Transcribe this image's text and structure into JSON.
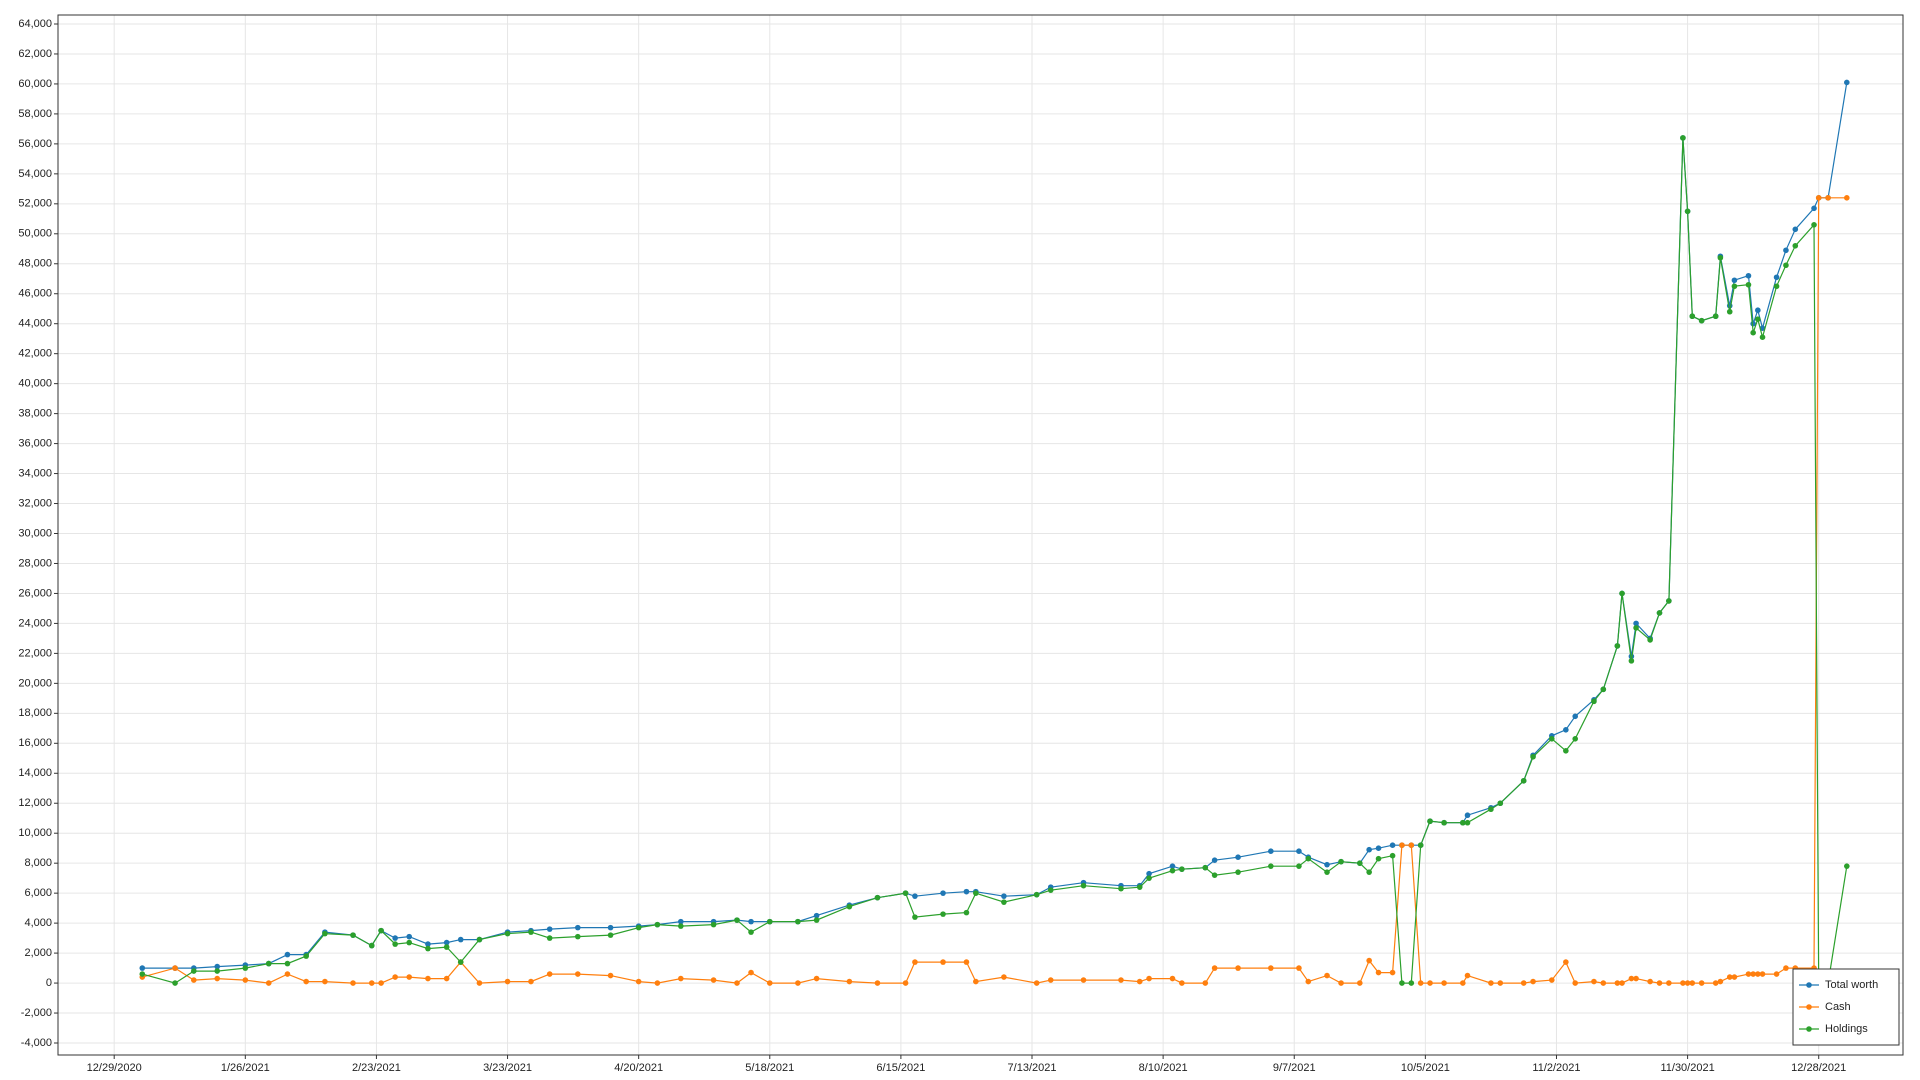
{
  "chart_data": {
    "type": "line",
    "x": [
      "1/4/2021",
      "1/11/2021",
      "1/15/2021",
      "1/20/2021",
      "1/26/2021",
      "1/31/2021",
      "2/4/2021",
      "2/8/2021",
      "2/12/2021",
      "2/18/2021",
      "2/22/2021",
      "2/24/2021",
      "2/27/2021",
      "3/2/2021",
      "3/6/2021",
      "3/10/2021",
      "3/13/2021",
      "3/17/2021",
      "3/23/2021",
      "3/28/2021",
      "4/1/2021",
      "4/7/2021",
      "4/14/2021",
      "4/20/2021",
      "4/24/2021",
      "4/29/2021",
      "5/6/2021",
      "5/11/2021",
      "5/14/2021",
      "5/18/2021",
      "5/24/2021",
      "5/28/2021",
      "6/4/2021",
      "6/10/2021",
      "6/16/2021",
      "6/18/2021",
      "6/24/2021",
      "6/29/2021",
      "7/1/2021",
      "7/7/2021",
      "7/14/2021",
      "7/17/2021",
      "7/24/2021",
      "8/1/2021",
      "8/5/2021",
      "8/7/2021",
      "8/12/2021",
      "8/14/2021",
      "8/19/2021",
      "8/21/2021",
      "8/26/2021",
      "9/2/2021",
      "9/8/2021",
      "9/10/2021",
      "9/14/2021",
      "9/17/2021",
      "9/21/2021",
      "9/23/2021",
      "9/25/2021",
      "9/28/2021",
      "9/30/2021",
      "10/2/2021",
      "10/4/2021",
      "10/6/2021",
      "10/9/2021",
      "10/13/2021",
      "10/14/2021",
      "10/19/2021",
      "10/21/2021",
      "10/26/2021",
      "10/28/2021",
      "11/1/2021",
      "11/4/2021",
      "11/6/2021",
      "11/10/2021",
      "11/12/2021",
      "11/15/2021",
      "11/16/2021",
      "11/18/2021",
      "11/19/2021",
      "11/22/2021",
      "11/24/2021",
      "11/26/2021",
      "11/29/2021",
      "11/30/2021",
      "12/1/2021",
      "12/3/2021",
      "12/6/2021",
      "12/7/2021",
      "12/9/2021",
      "12/10/2021",
      "12/13/2021",
      "12/14/2021",
      "12/15/2021",
      "12/16/2021",
      "12/19/2021",
      "12/21/2021",
      "12/23/2021",
      "12/27/2021",
      "12/28/2021",
      "12/30/2021",
      "1/3/2022"
    ],
    "series": [
      {
        "name": "Total worth",
        "color": "#1f77b4",
        "values": [
          1000,
          1000,
          1000,
          1100,
          1200,
          1300,
          1900,
          1900,
          3400,
          3200,
          2500,
          3500,
          3000,
          3100,
          2600,
          2700,
          2900,
          2900,
          3400,
          3500,
          3600,
          3700,
          3700,
          3800,
          3900,
          4100,
          4100,
          4200,
          4100,
          4100,
          4100,
          4500,
          5200,
          5700,
          6000,
          5800,
          6000,
          6100,
          6100,
          5800,
          5900,
          6400,
          6700,
          6500,
          6500,
          7300,
          7800,
          7600,
          7700,
          8200,
          8400,
          8800,
          8800,
          8400,
          7900,
          8100,
          8000,
          8900,
          9000,
          9200,
          9200,
          9200,
          9200,
          10800,
          10700,
          10700,
          11200,
          11700,
          12000,
          13500,
          15200,
          16500,
          16900,
          17800,
          18900,
          19600,
          22500,
          26000,
          21800,
          24000,
          23000,
          24700,
          25500,
          56400,
          51500,
          44500,
          44200,
          44500,
          48500,
          45200,
          46900,
          47200,
          44000,
          44900,
          43700,
          47100,
          48900,
          50300,
          51700,
          52400,
          52400,
          60100
        ]
      },
      {
        "name": "Cash",
        "color": "#ff7f0e",
        "values": [
          400,
          1000,
          200,
          300,
          200,
          0,
          600,
          100,
          100,
          0,
          0,
          0,
          400,
          400,
          300,
          300,
          1400,
          0,
          100,
          100,
          600,
          600,
          500,
          100,
          0,
          300,
          200,
          0,
          700,
          0,
          0,
          300,
          100,
          0,
          0,
          1400,
          1400,
          1400,
          100,
          400,
          0,
          200,
          200,
          200,
          100,
          300,
          300,
          0,
          0,
          1000,
          1000,
          1000,
          1000,
          100,
          500,
          0,
          0,
          1500,
          700,
          700,
          9200,
          9200,
          0,
          0,
          0,
          0,
          500,
          0,
          0,
          0,
          100,
          200,
          1400,
          0,
          100,
          0,
          0,
          0,
          300,
          300,
          100,
          0,
          0,
          0,
          0,
          0,
          0,
          0,
          100,
          400,
          400,
          600,
          600,
          600,
          600,
          600,
          1000,
          1000,
          1000,
          52400,
          52400,
          52400
        ]
      },
      {
        "name": "Holdings",
        "color": "#2ca02c",
        "values": [
          600,
          0,
          800,
          800,
          1000,
          1300,
          1300,
          1800,
          3300,
          3200,
          2500,
          3500,
          2600,
          2700,
          2300,
          2400,
          1400,
          2900,
          3300,
          3400,
          3000,
          3100,
          3200,
          3700,
          3900,
          3800,
          3900,
          4200,
          3400,
          4100,
          4100,
          4200,
          5100,
          5700,
          6000,
          4400,
          4600,
          4700,
          6000,
          5400,
          5900,
          6200,
          6500,
          6300,
          6400,
          7000,
          7500,
          7600,
          7700,
          7200,
          7400,
          7800,
          7800,
          8300,
          7400,
          8100,
          8000,
          7400,
          8300,
          8500,
          0,
          0,
          9200,
          10800,
          10700,
          10700,
          10700,
          11600,
          12000,
          13500,
          15100,
          16300,
          15500,
          16300,
          18800,
          19600,
          22500,
          26000,
          21500,
          23700,
          22900,
          24700,
          25500,
          56400,
          51500,
          44500,
          44200,
          44500,
          48400,
          44800,
          46500,
          46600,
          43400,
          44300,
          43100,
          46500,
          47900,
          49200,
          50600,
          0,
          0,
          7800
        ]
      }
    ],
    "xlim": [
      "12/17/2020",
      "1/15/2022"
    ],
    "xticks": [
      "12/29/2020",
      "1/26/2021",
      "2/23/2021",
      "3/23/2021",
      "4/20/2021",
      "5/18/2021",
      "6/15/2021",
      "7/13/2021",
      "8/10/2021",
      "9/7/2021",
      "10/5/2021",
      "11/2/2021",
      "11/30/2021",
      "12/28/2021"
    ],
    "ylim": [
      -4800,
      64600
    ],
    "yticks": [
      {
        "value": -4000,
        "label": "-4,000"
      },
      {
        "value": -2000,
        "label": "-2,000"
      },
      0,
      {
        "value": 2000,
        "label": "2,000"
      },
      {
        "value": 4000,
        "label": "4,000"
      },
      {
        "value": 6000,
        "label": "6,000"
      },
      {
        "value": 8000,
        "label": "8,000"
      },
      {
        "value": 10000,
        "label": "10,000"
      },
      {
        "value": 12000,
        "label": "12,000"
      },
      {
        "value": 14000,
        "label": "14,000"
      },
      {
        "value": 16000,
        "label": "16,000"
      },
      {
        "value": 18000,
        "label": "18,000"
      },
      {
        "value": 20000,
        "label": "20,000"
      },
      {
        "value": 22000,
        "label": "22,000"
      },
      {
        "value": 24000,
        "label": "24,000"
      },
      {
        "value": 26000,
        "label": "26,000"
      },
      {
        "value": 28000,
        "label": "28,000"
      },
      {
        "value": 30000,
        "label": "30,000"
      },
      {
        "value": 32000,
        "label": "32,000"
      },
      {
        "value": 34000,
        "label": "34,000"
      },
      {
        "value": 36000,
        "label": "36,000"
      },
      {
        "value": 38000,
        "label": "38,000"
      },
      {
        "value": 40000,
        "label": "40,000"
      },
      {
        "value": 42000,
        "label": "42,000"
      },
      {
        "value": 44000,
        "label": "44,000"
      },
      {
        "value": 46000,
        "label": "46,000"
      },
      {
        "value": 48000,
        "label": "48,000"
      },
      {
        "value": 50000,
        "label": "50,000"
      },
      {
        "value": 52000,
        "label": "52,000"
      },
      {
        "value": 54000,
        "label": "54,000"
      },
      {
        "value": 56000,
        "label": "56,000"
      },
      {
        "value": 58000,
        "label": "58,000"
      },
      {
        "value": 60000,
        "label": "60,000"
      },
      {
        "value": 62000,
        "label": "62,000"
      },
      {
        "value": 64000,
        "label": "64,000"
      }
    ],
    "grid": true,
    "legend": "lower right"
  }
}
